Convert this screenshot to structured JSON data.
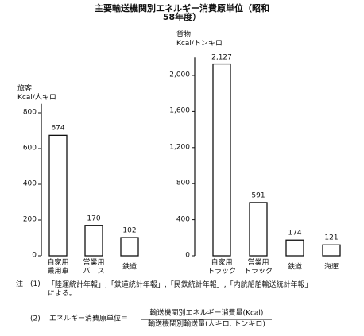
{
  "title": "主要輸送機関別エネルギー消費原単位（昭和58年度）",
  "chart_data": [
    {
      "type": "bar",
      "ylabel": "旅客\nKcal/人キロ",
      "categories": [
        "自家用\n乗用車",
        "営業用\nバ　ス",
        "鉄道"
      ],
      "values": [
        674,
        170,
        102
      ],
      "color": "#ffffff",
      "ylim": [
        0,
        850
      ],
      "yticks": [
        0,
        200,
        400,
        600,
        800
      ]
    },
    {
      "type": "bar",
      "ylabel": "貨物\nKcal/トンキロ",
      "categories": [
        "自家用\nトラック",
        "営業用\nトラック",
        "鉄道",
        "海運"
      ],
      "values": [
        2127,
        591,
        174,
        121
      ],
      "value_labels": [
        "2,127",
        "591",
        "174",
        "121"
      ],
      "color": "#ffffff",
      "ylim": [
        0,
        2200
      ],
      "yticks": [
        0,
        400,
        800,
        {
          "value": 1200,
          "label": "1,200"
        },
        {
          "value": 1600,
          "label": "1,600"
        },
        {
          "value": 2000,
          "label": "2,000"
        }
      ]
    }
  ],
  "notes": [
    {
      "marker": "注　(1)",
      "text": "「陸運統計年報」,「鉄道統計年報」,「民鉄統計年報」,「内航船舶輸送統計年報」\nによる。"
    },
    {
      "marker": "(2)",
      "text": "エネルギー消費原単位＝",
      "numerator": "輸送機関別エネルギー消費量(Kcal)",
      "denominator": "輸送機関別輸送量(人キロ, トンキロ)"
    }
  ]
}
